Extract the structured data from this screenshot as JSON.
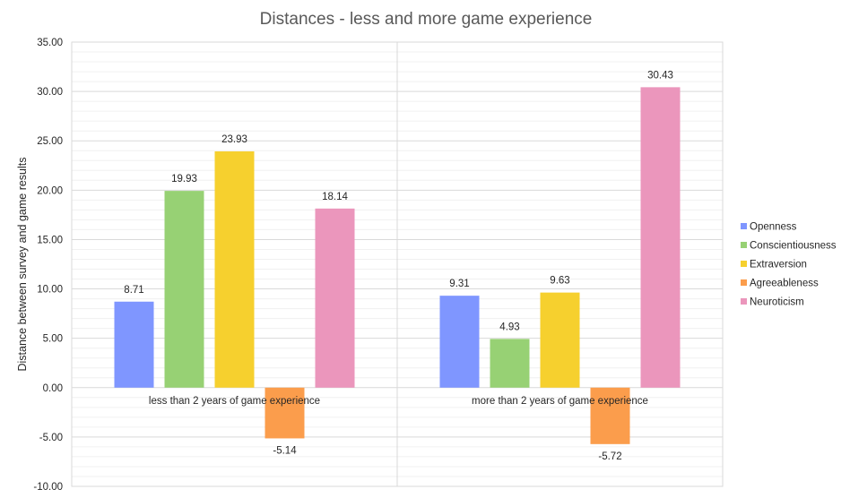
{
  "chart_data": {
    "type": "bar",
    "title": "Distances - less and more game experience",
    "ylabel": "Distance between survey and game results",
    "xlabel": "",
    "ylim": [
      -10,
      35
    ],
    "ytick_step": 5,
    "ytick_decimals": 2,
    "grid": true,
    "legend_position": "right",
    "categories": [
      "less than 2 years of game experience",
      "more than 2 years of game experience"
    ],
    "series": [
      {
        "name": "Openness",
        "color": "#7F96FF",
        "values": [
          8.71,
          9.31
        ]
      },
      {
        "name": "Conscientiousness",
        "color": "#97D174",
        "values": [
          19.93,
          4.93
        ]
      },
      {
        "name": "Extraversion",
        "color": "#F6D02E",
        "values": [
          23.93,
          9.63
        ]
      },
      {
        "name": "Agreeableness",
        "color": "#FB9D4C",
        "values": [
          -5.14,
          -5.72
        ]
      },
      {
        "name": "Neuroticism",
        "color": "#EB96BC",
        "values": [
          18.14,
          30.43
        ]
      }
    ]
  }
}
